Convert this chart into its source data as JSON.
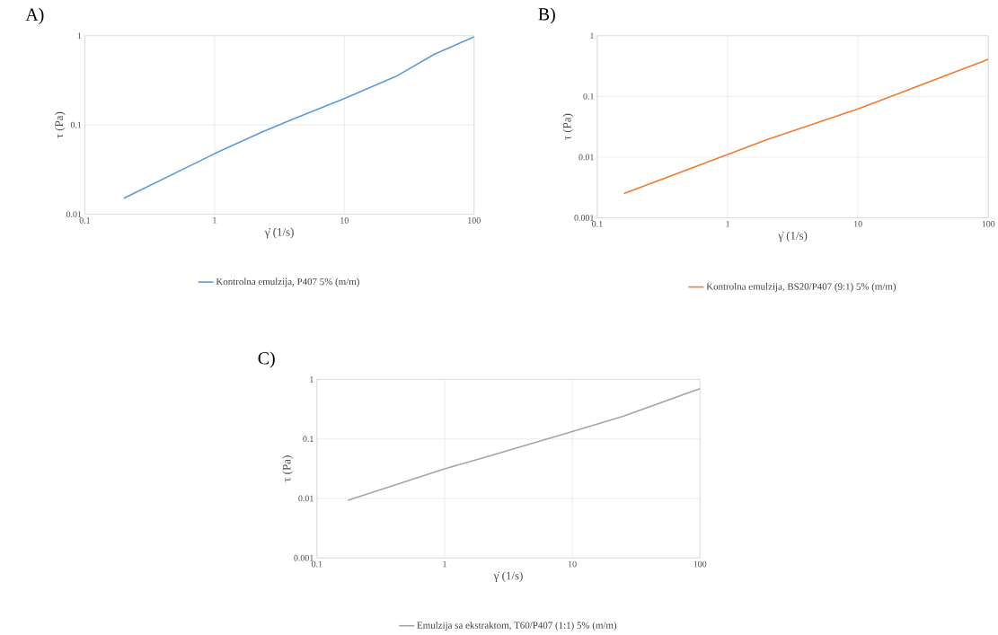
{
  "chart_data": [
    {
      "type": "line",
      "title": "A)",
      "xlabel": "γ̇  (1/s)",
      "ylabel": "τ (Pa)",
      "log": "xy",
      "grid": true,
      "legend": "bottom",
      "x": [
        0.2,
        1,
        2.3,
        4,
        10,
        25,
        50,
        100
      ],
      "series": [
        {
          "name": "Kontrolna emulzija, P407 5% (m/m)",
          "color": "#5b9bd5",
          "values": [
            0.0151,
            0.0477,
            0.083,
            0.116,
            0.198,
            0.35,
            0.625,
            0.97
          ]
        }
      ],
      "xlim": [
        0.1,
        100
      ],
      "ylim": [
        0.01,
        1
      ],
      "xticks": [
        0.1,
        1,
        10,
        100
      ],
      "yticks": [
        0.01,
        0.1,
        1
      ]
    },
    {
      "type": "line",
      "title": "B)",
      "xlabel": "γ̇  (1/s)",
      "ylabel": "τ (Pa)",
      "log": "xy",
      "grid": true,
      "legend": "bottom",
      "x": [
        0.16,
        1,
        2,
        10,
        20,
        100
      ],
      "series": [
        {
          "name": "Kontrolna emulzija, BS20/P407 (9:1) 5% (m/m)",
          "color": "#ed7d31",
          "values": [
            0.0025,
            0.011,
            0.0194,
            0.062,
            0.109,
            0.41
          ]
        }
      ],
      "xlim": [
        0.1,
        100
      ],
      "ylim": [
        0.001,
        1
      ],
      "xticks": [
        0.1,
        1,
        10,
        100
      ],
      "yticks": [
        0.001,
        0.01,
        0.1,
        1
      ]
    },
    {
      "type": "line",
      "title": "C)",
      "xlabel": "γ̇  (1/s)",
      "ylabel": "τ (Pa)",
      "log": "xy",
      "grid": true,
      "legend": "bottom",
      "x": [
        0.175,
        1,
        2,
        10,
        25,
        100
      ],
      "series": [
        {
          "name": "Emulzija sa ekstraktom, T60/P407 (1:1) 5% (m/m)",
          "color": "#a5a5a5",
          "values": [
            0.0093,
            0.0314,
            0.048,
            0.133,
            0.24,
            0.7
          ]
        }
      ],
      "xlim": [
        0.1,
        100
      ],
      "ylim": [
        0.001,
        1
      ],
      "xticks": [
        0.1,
        1,
        10,
        100
      ],
      "yticks": [
        0.001,
        0.01,
        0.1,
        1
      ]
    }
  ]
}
